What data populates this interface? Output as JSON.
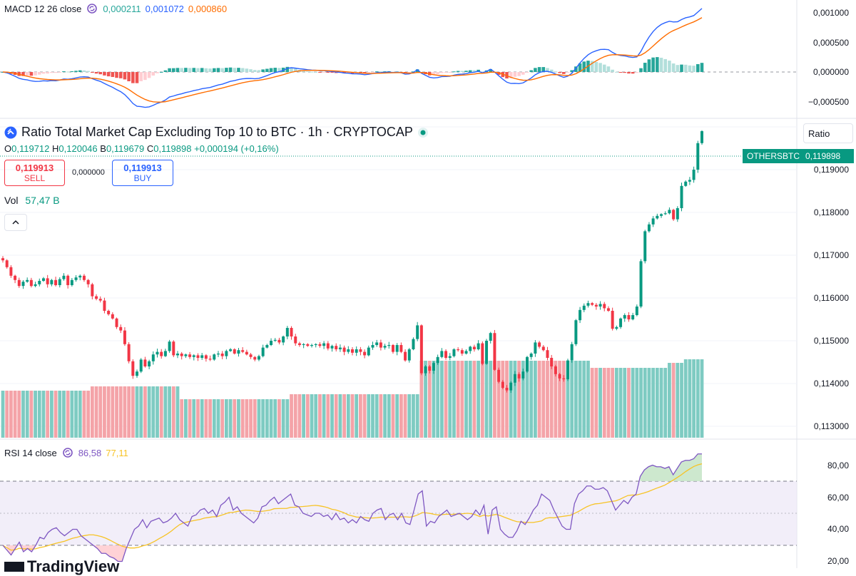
{
  "macd": {
    "legend_label": "MACD 12 26 close",
    "hist_value": "0,000211",
    "macd_value": "0,001072",
    "signal_value": "0,000860",
    "ticks": [
      "0,001000",
      "0,000500",
      "0,000000",
      "−0,000500"
    ],
    "colors": {
      "macd": "#2962ff",
      "signal": "#ff6d00",
      "hist_up": "#26a69a",
      "hist_up_light": "#b2dfdb",
      "hist_down": "#ef5350",
      "hist_down_light": "#ffcdd2"
    }
  },
  "main": {
    "title": "Ratio Total Market Cap Excluding Top 10 to BTC · 1h · CRYPTOCAP",
    "ohlc": {
      "o_label": "O",
      "o": "0,119712",
      "h_label": "H",
      "h": "0,120046",
      "l_label": "B",
      "l": "0,119679",
      "c_label": "C",
      "c": "0,119898",
      "change": "+0,000194 (+0,16%)"
    },
    "sell": {
      "price": "0,119913",
      "label": "SELL"
    },
    "spread": "0,000000",
    "buy": {
      "price": "0,119913",
      "label": "BUY"
    },
    "volume": {
      "label": "Vol",
      "value": "57,47 B"
    },
    "scale_button": "Ratio",
    "symbol_tag": "OTHERSBTC",
    "price_tag": "0,119898",
    "ticks": [
      "0,120000",
      "0,119000",
      "0,118000",
      "0,117000",
      "0,116000",
      "0,115000",
      "0,114000",
      "0,113000"
    ],
    "colors": {
      "up": "#089981",
      "down": "#f23645",
      "vol_up": "#7ecbc2",
      "vol_down": "#f4a3a8"
    }
  },
  "rsi": {
    "legend_label": "RSI 14 close",
    "rsi_value": "86,58",
    "ma_value": "77,11",
    "ticks": [
      "80,00",
      "60,00",
      "40,00",
      "20,00"
    ],
    "colors": {
      "rsi": "#7e57c2",
      "ma": "#f7c325",
      "band": "#ede7f6"
    }
  },
  "branding": "TradingView",
  "chart_data": {
    "type": "candlestick",
    "title": "Ratio Total Market Cap Excluding Top 10 to BTC · 1h · CRYPTOCAP",
    "ylim": [
      0.1127,
      0.1202
    ],
    "closes": [
      0.11688,
      0.11672,
      0.11652,
      0.11642,
      0.11628,
      0.11638,
      0.11642,
      0.11628,
      0.11632,
      0.1164,
      0.11646,
      0.11632,
      0.11642,
      0.1163,
      0.11644,
      0.11652,
      0.1163,
      0.11642,
      0.11648,
      0.11652,
      0.11642,
      0.11632,
      0.11604,
      0.11598,
      0.11594,
      0.1157,
      0.11562,
      0.11552,
      0.11532,
      0.11524,
      0.11492,
      0.11452,
      0.11418,
      0.11428,
      0.11456,
      0.1144,
      0.11452,
      0.11468,
      0.11474,
      0.11464,
      0.11476,
      0.11498,
      0.11466,
      0.1147,
      0.11464,
      0.11468,
      0.11462,
      0.11466,
      0.1146,
      0.11466,
      0.11458,
      0.11456,
      0.11468,
      0.1147,
      0.11464,
      0.11476,
      0.1148,
      0.1147,
      0.11478,
      0.11474,
      0.11468,
      0.11462,
      0.11456,
      0.11464,
      0.11484,
      0.1149,
      0.115,
      0.11502,
      0.11496,
      0.1151,
      0.1153,
      0.1151,
      0.11494,
      0.1149,
      0.11492,
      0.11488,
      0.1149,
      0.11492,
      0.11488,
      0.11494,
      0.11482,
      0.11488,
      0.1148,
      0.11484,
      0.11474,
      0.1148,
      0.11472,
      0.1148,
      0.11474,
      0.11466,
      0.11484,
      0.1149,
      0.11496,
      0.11484,
      0.11488,
      0.1149,
      0.11474,
      0.1149,
      0.11474,
      0.11454,
      0.1148,
      0.11504,
      0.11536,
      0.11424,
      0.1144,
      0.1143,
      0.11448,
      0.11462,
      0.11476,
      0.1146,
      0.11464,
      0.1148,
      0.11478,
      0.1147,
      0.11476,
      0.11486,
      0.1148,
      0.11494,
      0.11446,
      0.115,
      0.11518,
      0.11432,
      0.11404,
      0.1139,
      0.11384,
      0.11402,
      0.11422,
      0.11412,
      0.11428,
      0.11462,
      0.1147,
      0.11496,
      0.11486,
      0.11478,
      0.1146,
      0.1144,
      0.11422,
      0.11412,
      0.1141,
      0.11454,
      0.11492,
      0.11548,
      0.11572,
      0.11582,
      0.11588,
      0.11584,
      0.1158,
      0.11586,
      0.11576,
      0.1157,
      0.11528,
      0.11532,
      0.11552,
      0.1156,
      0.1155,
      0.1156,
      0.1158,
      0.11686,
      0.11756,
      0.11772,
      0.11786,
      0.11792,
      0.11796,
      0.11798,
      0.11806,
      0.11784,
      0.1181,
      0.11862,
      0.11872,
      0.11876,
      0.119,
      0.11962,
      0.1199
    ],
    "rsi_series": [
      30,
      27,
      24,
      28,
      32,
      26,
      28,
      26,
      30,
      35,
      34,
      38,
      40,
      41,
      38,
      36,
      38,
      40,
      40,
      36,
      34,
      32,
      30,
      28,
      25,
      25,
      23,
      22,
      20,
      20,
      28,
      34,
      40,
      42,
      46,
      41,
      45,
      46,
      47,
      44,
      45,
      47,
      50,
      46,
      44,
      42,
      48,
      49,
      52,
      53,
      50,
      52,
      48,
      55,
      57,
      60,
      52,
      54,
      50,
      48,
      46,
      44,
      47,
      54,
      55,
      58,
      60,
      56,
      58,
      60,
      62,
      55,
      54,
      50,
      49,
      48,
      50,
      50,
      48,
      49,
      46,
      50,
      46,
      47,
      44,
      46,
      44,
      48,
      46,
      45,
      50,
      52,
      53,
      46,
      49,
      50,
      46,
      50,
      44,
      43,
      52,
      62,
      64,
      42,
      45,
      44,
      48,
      50,
      52,
      48,
      49,
      50,
      48,
      46,
      48,
      52,
      49,
      55,
      37,
      52,
      54,
      40,
      37,
      35,
      35,
      39,
      45,
      43,
      47,
      52,
      55,
      62,
      60,
      58,
      52,
      47,
      42,
      40,
      40,
      56,
      62,
      64,
      67,
      67,
      65,
      65,
      66,
      64,
      58,
      52,
      55,
      58,
      56,
      60,
      62,
      73,
      77,
      79,
      80,
      79,
      79,
      78,
      79,
      74,
      78,
      82,
      83,
      83,
      84,
      87,
      87
    ]
  }
}
